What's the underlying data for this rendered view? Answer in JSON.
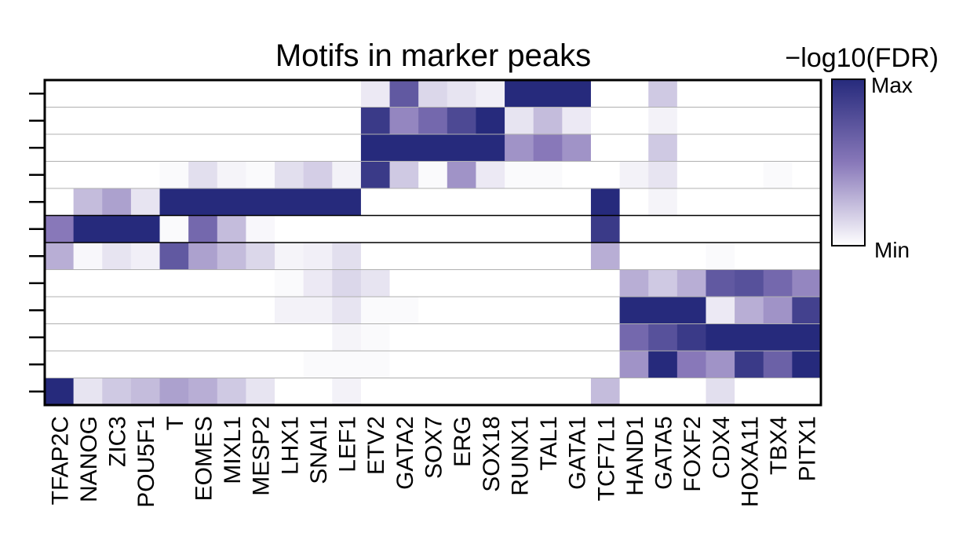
{
  "chart_data": {
    "type": "heatmap",
    "title": "Motifs in marker peaks",
    "columns": [
      "TFAP2C",
      "NANOG",
      "ZIC3",
      "POU5F1",
      "T",
      "EOMES",
      "MIXL1",
      "MESP2",
      "LHX1",
      "SNAI1",
      "LEF1",
      "ETV2",
      "GATA2",
      "SOX7",
      "ERG",
      "SOX18",
      "RUNX1",
      "TAL1",
      "GATA1",
      "TCF7L1",
      "HAND1",
      "GATA5",
      "FOXF2",
      "CDX4",
      "HOXA11",
      "TBX4",
      "PITX1"
    ],
    "row_count": 12,
    "values": [
      [
        0,
        0,
        0,
        0,
        0,
        0,
        0,
        0,
        0,
        0,
        0,
        0.08,
        0.7,
        0.15,
        0.1,
        0.06,
        1,
        1,
        1,
        0,
        0,
        0.2,
        0,
        0,
        0,
        0,
        0
      ],
      [
        0,
        0,
        0,
        0,
        0,
        0,
        0,
        0,
        0,
        0,
        0,
        0.9,
        0.45,
        0.6,
        0.8,
        1,
        0.1,
        0.25,
        0.08,
        0,
        0,
        0.05,
        0,
        0,
        0,
        0,
        0
      ],
      [
        0,
        0,
        0,
        0,
        0,
        0,
        0,
        0,
        0,
        0,
        0,
        1,
        1,
        1,
        1,
        1,
        0.4,
        0.5,
        0.4,
        0,
        0,
        0.2,
        0,
        0,
        0,
        0,
        0
      ],
      [
        0,
        0,
        0,
        0,
        0.02,
        0.12,
        0.04,
        0.02,
        0.12,
        0.18,
        0.05,
        0.9,
        0.2,
        0.02,
        0.4,
        0.08,
        0.02,
        0.02,
        0,
        0,
        0.05,
        0.1,
        0,
        0,
        0,
        0.02,
        0
      ],
      [
        0,
        0.25,
        0.35,
        0.1,
        1,
        1,
        1,
        1,
        1,
        1,
        1,
        0,
        0,
        0,
        0,
        0,
        0,
        0,
        0,
        1,
        0,
        0.04,
        0,
        0,
        0,
        0,
        0
      ],
      [
        0.5,
        1,
        1,
        1,
        0.02,
        0.6,
        0.25,
        0.03,
        0,
        0,
        0,
        0,
        0,
        0,
        0,
        0,
        0,
        0,
        0,
        0.9,
        0,
        0,
        0,
        0,
        0,
        0,
        0
      ],
      [
        0.3,
        0.03,
        0.1,
        0.06,
        0.7,
        0.35,
        0.25,
        0.15,
        0.04,
        0.06,
        0.12,
        0,
        0,
        0,
        0,
        0,
        0,
        0,
        0,
        0.3,
        0,
        0,
        0,
        0.02,
        0,
        0,
        0
      ],
      [
        0,
        0,
        0,
        0,
        0,
        0,
        0,
        0,
        0.02,
        0.08,
        0.15,
        0.1,
        0,
        0,
        0,
        0,
        0,
        0,
        0,
        0,
        0.3,
        0.2,
        0.3,
        0.7,
        0.75,
        0.6,
        0.45
      ],
      [
        0,
        0,
        0,
        0,
        0,
        0,
        0,
        0,
        0.05,
        0.05,
        0.1,
        0.02,
        0.02,
        0,
        0,
        0,
        0,
        0,
        0,
        0,
        1,
        1,
        1,
        0.08,
        0.3,
        0.4,
        0.85
      ],
      [
        0,
        0,
        0,
        0,
        0,
        0,
        0,
        0,
        0,
        0,
        0.04,
        0.02,
        0,
        0,
        0,
        0,
        0,
        0,
        0,
        0,
        0.6,
        0.75,
        0.9,
        1,
        1,
        1,
        1
      ],
      [
        0,
        0,
        0,
        0,
        0,
        0,
        0,
        0,
        0,
        0.02,
        0.02,
        0.02,
        0,
        0,
        0,
        0,
        0,
        0,
        0,
        0,
        0.4,
        1,
        0.5,
        0.4,
        0.9,
        0.65,
        1
      ],
      [
        1,
        0.1,
        0.2,
        0.25,
        0.35,
        0.3,
        0.2,
        0.1,
        0,
        0,
        0.05,
        0,
        0,
        0,
        0,
        0,
        0,
        0,
        0,
        0.25,
        0,
        0,
        0,
        0.12,
        0,
        0,
        0
      ]
    ],
    "color_scale": {
      "min_color": "#ffffff",
      "max_color": "#262a7c",
      "mid_color": "#8878b9"
    },
    "legend": {
      "title": "−log10(FDR)",
      "max_label": "Max",
      "min_label": "Min",
      "position": "top-right"
    },
    "separator_rows": [
      5,
      6
    ]
  }
}
